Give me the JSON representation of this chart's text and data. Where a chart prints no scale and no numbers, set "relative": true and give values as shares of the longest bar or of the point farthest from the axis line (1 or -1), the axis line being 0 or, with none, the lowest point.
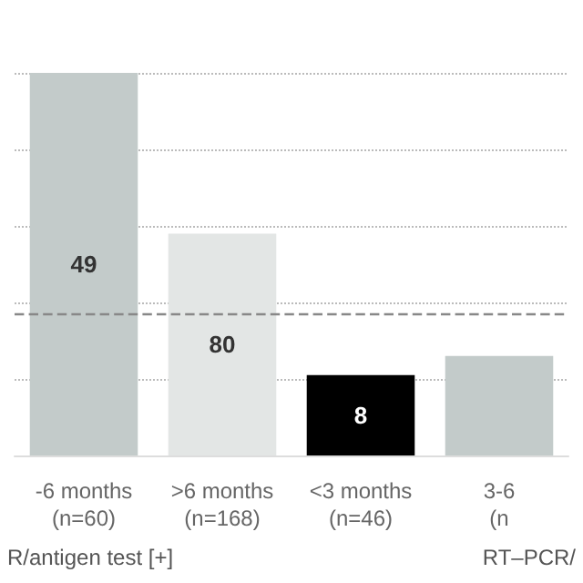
{
  "chart_data": {
    "type": "bar",
    "relative": true,
    "categories": [
      "-6 months\n(n=60)",
      ">6 months\n(n=168)",
      "<3 months\n(n=46)",
      "3-6\n(n"
    ],
    "values": [
      1,
      0.58,
      0.21,
      0.26
    ],
    "colors": [
      "#c3cbca",
      "#e3e6e5",
      "#000000",
      "#c3cbca"
    ],
    "ref_lines": [
      {
        "axis": "y",
        "value": 0.37,
        "color": "#888888",
        "line_style": "dashed"
      }
    ],
    "annotations": [
      "49",
      "80",
      "8",
      "R/antigen test [+]",
      "RT–PCR/"
    ],
    "grid": "y"
  }
}
